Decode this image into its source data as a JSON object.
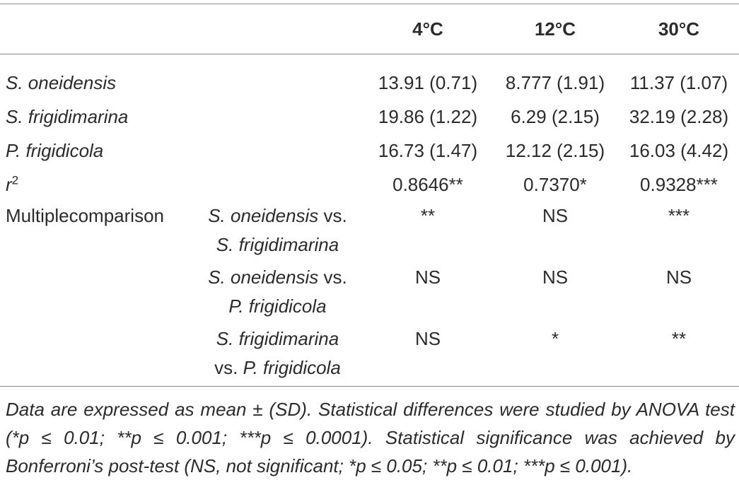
{
  "table": {
    "columns": [
      "4°C",
      "12°C",
      "30°C"
    ],
    "rows": [
      {
        "label": "S. oneidensis",
        "values": [
          "13.91 (0.71)",
          "8.777 (1.91)",
          "11.37 (1.07)"
        ]
      },
      {
        "label": "S. frigidimarina",
        "values": [
          "19.86 (1.22)",
          "6.29 (2.15)",
          "32.19 (2.28)"
        ]
      },
      {
        "label": "P. frigidicola",
        "values": [
          "16.73 (1.47)",
          "12.12 (2.15)",
          "16.03 (4.42)"
        ]
      }
    ],
    "r_squared": {
      "symbol": "r",
      "exponent": "2",
      "values": [
        "0.8646**",
        "0.7370*",
        "0.9328***"
      ]
    },
    "comparison": {
      "label": "Multiplecomparison",
      "rows": [
        {
          "lines": [
            [
              {
                "text": "S. oneidensis",
                "italic": true
              },
              {
                "text": "vs.",
                "italic": false
              }
            ],
            [
              {
                "text": "S. frigidimarina",
                "italic": true
              }
            ]
          ],
          "values": [
            "**",
            "NS",
            "***"
          ]
        },
        {
          "lines": [
            [
              {
                "text": "S. oneidensis",
                "italic": true
              },
              {
                "text": "vs.",
                "italic": false
              }
            ],
            [
              {
                "text": "P. frigidicola",
                "italic": true
              }
            ]
          ],
          "values": [
            "NS",
            "NS",
            "NS"
          ]
        },
        {
          "lines": [
            [
              {
                "text": "S. frigidimarina",
                "italic": true
              }
            ],
            [
              {
                "text": "vs.",
                "italic": false
              },
              {
                "text": "P. frigidicola",
                "italic": true
              }
            ]
          ],
          "values": [
            "NS",
            "*",
            "**"
          ]
        }
      ]
    }
  },
  "footnote": "Data are expressed as mean ± (SD). Statistical differences were studied by ANOVA test (*p ≤ 0.01; **p ≤ 0.001; ***p ≤ 0.0001). Statistical significance was achieved by Bonferroni’s post-test (NS, not significant; *p ≤ 0.05; **p ≤ 0.01; ***p ≤ 0.001)."
}
